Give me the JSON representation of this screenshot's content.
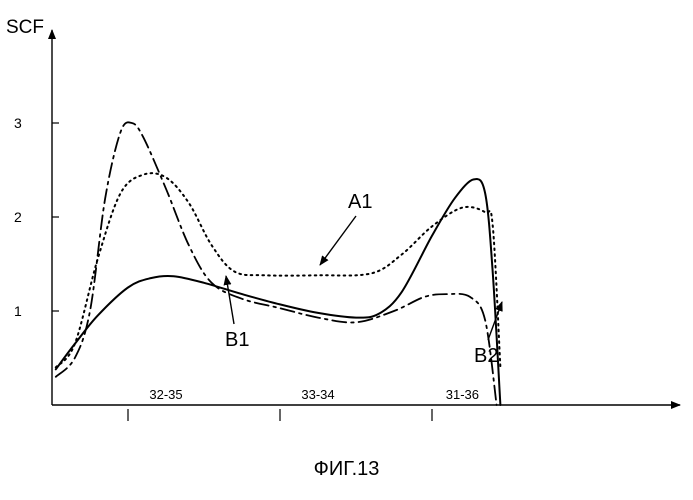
{
  "chart_data": {
    "type": "line",
    "ylabel": "SCF",
    "xlabel": "",
    "ylim": [
      0,
      3.0
    ],
    "xlim": [
      0,
      6
    ],
    "y_ticks": [
      1,
      2,
      3
    ],
    "x_ticks": [
      1,
      3,
      5
    ],
    "region_labels": [
      {
        "text": "32-35",
        "x": 1.5
      },
      {
        "text": "33-34",
        "x": 3.5
      },
      {
        "text": "31-36",
        "x": 5.4
      }
    ],
    "annotations": [
      {
        "text": "A1",
        "series": "A1"
      },
      {
        "text": "B1",
        "series": "B1"
      },
      {
        "text": "B2",
        "series": "B2"
      }
    ],
    "series": [
      {
        "name": "A1",
        "style": "dotted",
        "points": [
          [
            0.05,
            0.4
          ],
          [
            0.3,
            0.65
          ],
          [
            0.6,
            1.55
          ],
          [
            0.9,
            2.25
          ],
          [
            1.2,
            2.45
          ],
          [
            1.5,
            2.42
          ],
          [
            1.8,
            2.15
          ],
          [
            2.1,
            1.7
          ],
          [
            2.4,
            1.42
          ],
          [
            2.8,
            1.38
          ],
          [
            3.5,
            1.38
          ],
          [
            4.2,
            1.4
          ],
          [
            4.6,
            1.6
          ],
          [
            5.0,
            1.9
          ],
          [
            5.4,
            2.1
          ],
          [
            5.7,
            2.05
          ],
          [
            5.8,
            1.9
          ],
          [
            5.9,
            0.4
          ]
        ]
      },
      {
        "name": "B1",
        "style": "solid",
        "points": [
          [
            0.05,
            0.38
          ],
          [
            0.3,
            0.65
          ],
          [
            0.6,
            0.95
          ],
          [
            1.0,
            1.25
          ],
          [
            1.3,
            1.35
          ],
          [
            1.6,
            1.37
          ],
          [
            2.0,
            1.3
          ],
          [
            2.5,
            1.18
          ],
          [
            3.0,
            1.07
          ],
          [
            3.5,
            0.98
          ],
          [
            4.0,
            0.93
          ],
          [
            4.3,
            0.97
          ],
          [
            4.6,
            1.2
          ],
          [
            5.0,
            1.8
          ],
          [
            5.3,
            2.2
          ],
          [
            5.55,
            2.4
          ],
          [
            5.7,
            2.25
          ],
          [
            5.8,
            1.4
          ],
          [
            5.9,
            0.0
          ]
        ]
      },
      {
        "name": "B2",
        "style": "dash-dot",
        "points": [
          [
            0.05,
            0.3
          ],
          [
            0.3,
            0.5
          ],
          [
            0.5,
            1.0
          ],
          [
            0.7,
            2.2
          ],
          [
            0.9,
            2.9
          ],
          [
            1.05,
            3.0
          ],
          [
            1.2,
            2.85
          ],
          [
            1.5,
            2.3
          ],
          [
            1.8,
            1.7
          ],
          [
            2.1,
            1.3
          ],
          [
            2.5,
            1.13
          ],
          [
            3.0,
            1.03
          ],
          [
            3.5,
            0.93
          ],
          [
            4.0,
            0.88
          ],
          [
            4.5,
            1.0
          ],
          [
            4.9,
            1.15
          ],
          [
            5.2,
            1.18
          ],
          [
            5.5,
            1.15
          ],
          [
            5.7,
            0.9
          ],
          [
            5.85,
            0.0
          ]
        ]
      }
    ]
  },
  "caption": "ФИГ.13"
}
